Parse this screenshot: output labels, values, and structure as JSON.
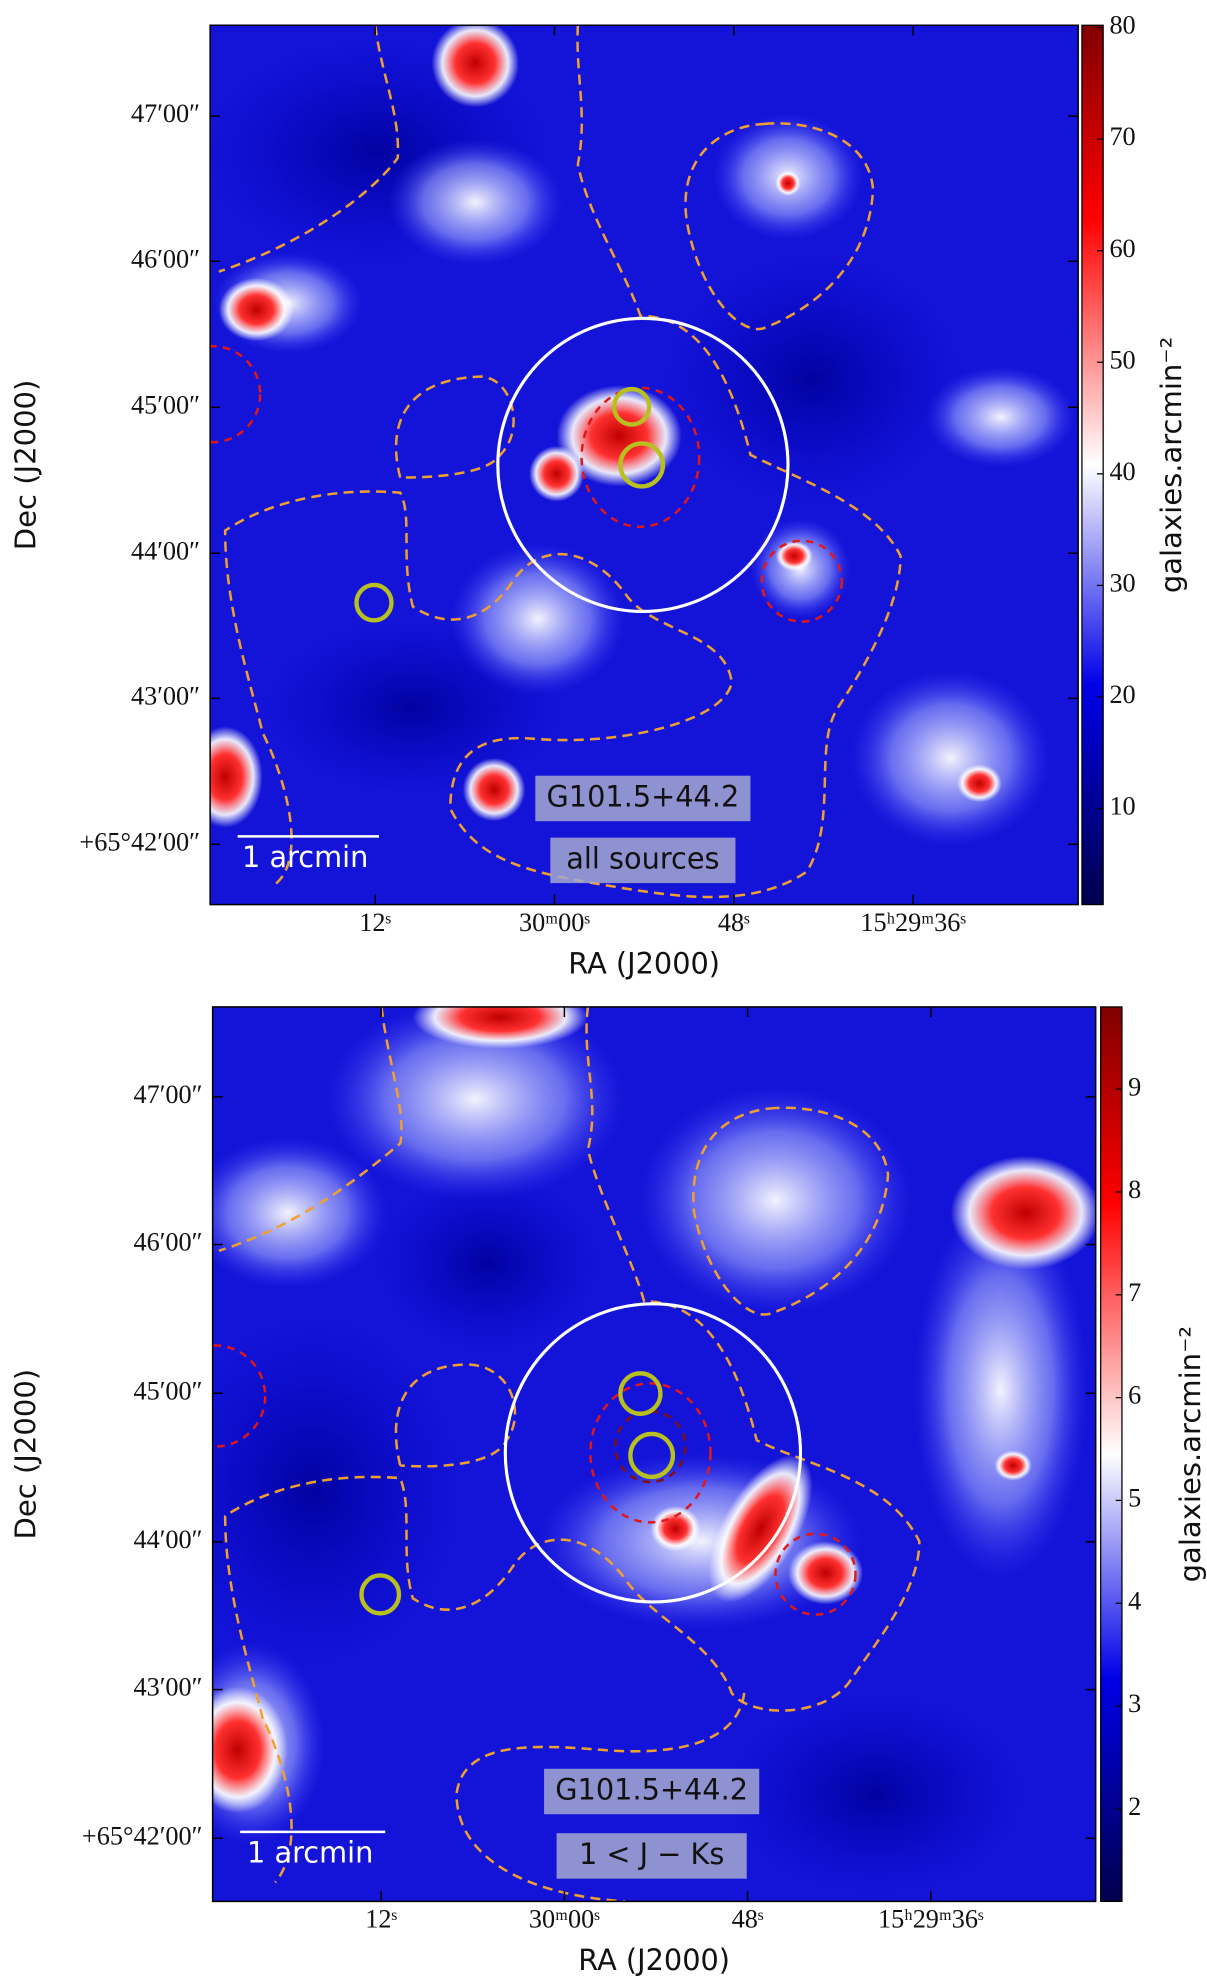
{
  "chart_data": [
    {
      "type": "density-map",
      "xlabel": "RA (J2000)",
      "ylabel": "Dec (J2000)",
      "xlim": [
        232.596,
        232.354
      ],
      "ylim": [
        65.6931,
        65.7937
      ],
      "xticks": [
        {
          "value": 232.55,
          "label": "12ˢ"
        },
        {
          "value": 232.5,
          "label": "30ᵐ00ˢ"
        },
        {
          "value": 232.45,
          "label": "48ˢ"
        },
        {
          "value": 232.4,
          "label": "15ʰ29ᵐ36ˢ"
        }
      ],
      "yticks": [
        {
          "value": 65.7833,
          "label": "47′00″"
        },
        {
          "value": 65.7667,
          "label": "46′00″"
        },
        {
          "value": 65.75,
          "label": "45′00″"
        },
        {
          "value": 65.7333,
          "label": "44′00″"
        },
        {
          "value": 65.7167,
          "label": "43′00″"
        },
        {
          "value": 65.7,
          "label": "+65°42′00″"
        }
      ],
      "colorbar": {
        "label": "galaxies.arcmin⁻²",
        "lim": [
          1.4,
          80.2
        ],
        "ticks": [
          10,
          20,
          30,
          40,
          50,
          60,
          70,
          80
        ]
      },
      "annotations": [
        "G101.5+44.2",
        "all sources",
        "1 arcmin"
      ]
    },
    {
      "type": "density-map",
      "xlabel": "RA (J2000)",
      "ylabel": "Dec (J2000)",
      "xlim": [
        232.596,
        232.355
      ],
      "ylim": [
        65.6929,
        65.7934
      ],
      "xticks": [
        {
          "value": 232.55,
          "label": "12ˢ"
        },
        {
          "value": 232.5,
          "label": "30ᵐ00ˢ"
        },
        {
          "value": 232.45,
          "label": "48ˢ"
        },
        {
          "value": 232.4,
          "label": "15ʰ29ᵐ36ˢ"
        }
      ],
      "yticks": [
        {
          "value": 65.7833,
          "label": "47′00″"
        },
        {
          "value": 65.7667,
          "label": "46′00″"
        },
        {
          "value": 65.75,
          "label": "45′00″"
        },
        {
          "value": 65.7333,
          "label": "44′00″"
        },
        {
          "value": 65.7167,
          "label": "43′00″"
        },
        {
          "value": 65.7,
          "label": "+65°42′00″"
        }
      ],
      "colorbar": {
        "label": "galaxies.arcmin⁻²",
        "lim": [
          1.1,
          9.8
        ],
        "ticks": [
          2,
          3,
          4,
          5,
          6,
          7,
          8,
          9
        ]
      },
      "annotations": [
        "G101.5+44.2",
        "1 < J − Ks",
        "1 arcmin"
      ]
    }
  ]
}
